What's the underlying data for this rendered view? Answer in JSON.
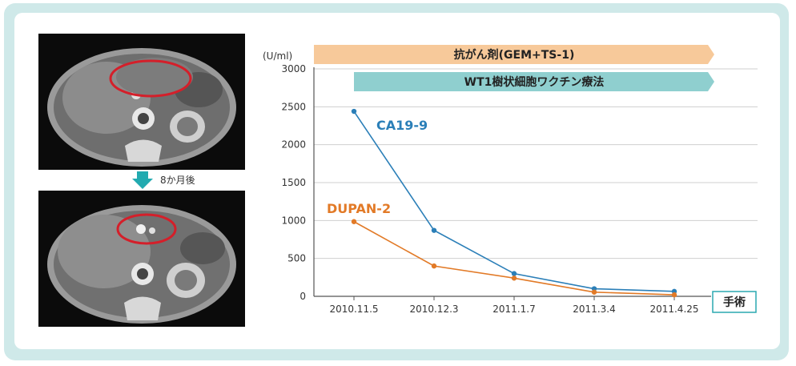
{
  "colors": {
    "frame": "#cfe9e9",
    "ca199": "#2b7fb8",
    "dupan2": "#e27a27",
    "chemo_band": "#f7c99a",
    "vaccine_band": "#8fcfcf"
  },
  "ct_images": {
    "top_alt": "CT before treatment",
    "bottom_alt": "CT after treatment",
    "arrow_icon": "down-arrow-icon",
    "interval_label": "8か月後"
  },
  "chart_data": {
    "type": "line",
    "ylabel": "(U/ml)",
    "ylim": [
      0,
      3000
    ],
    "yticks": [
      0,
      500,
      1000,
      1500,
      2000,
      2500,
      3000
    ],
    "categories": [
      "2010.11.5",
      "2010.12.3",
      "2011.1.7",
      "2011.3.4",
      "2011.4.25"
    ],
    "series": [
      {
        "name": "CA19-9",
        "values": [
          2440,
          870,
          300,
          100,
          65
        ]
      },
      {
        "name": "DUPAN-2",
        "values": [
          985,
          400,
          240,
          55,
          20
        ]
      }
    ],
    "bands": [
      {
        "label": "抗がん剤(GEM+TS-1)",
        "from": 0,
        "to": 4
      },
      {
        "label": "WT1樹状細胞ワクチン療法",
        "from": 0,
        "to": 4
      }
    ],
    "endpoint_label": "手術"
  }
}
